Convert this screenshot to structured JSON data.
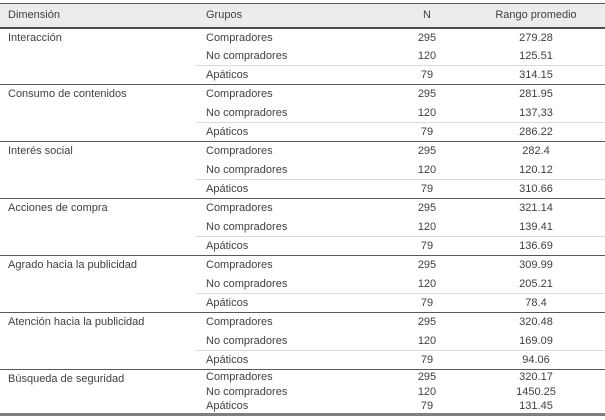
{
  "table": {
    "columns": [
      "Dimensión",
      "Grupos",
      "N",
      "Rango promedio"
    ],
    "groups": [
      {
        "dimension": "Interacción",
        "rows": [
          {
            "grupo": "Compradores",
            "n": "295",
            "rango": "279.28"
          },
          {
            "grupo": "No compradores",
            "n": "120",
            "rango": "125.51"
          },
          {
            "grupo": "Apáticos",
            "n": "79",
            "rango": "314.15"
          }
        ]
      },
      {
        "dimension": "Consumo de contenidos",
        "rows": [
          {
            "grupo": "Compradores",
            "n": "295",
            "rango": "281.95"
          },
          {
            "grupo": "No compradores",
            "n": "120",
            "rango": "137,33"
          },
          {
            "grupo": "Apáticos",
            "n": "79",
            "rango": "286.22"
          }
        ]
      },
      {
        "dimension": "Interés social",
        "rows": [
          {
            "grupo": "Compradores",
            "n": "295",
            "rango": "282.4"
          },
          {
            "grupo": "No compradores",
            "n": "120",
            "rango": "120.12"
          },
          {
            "grupo": "Apáticos",
            "n": "79",
            "rango": "310.66"
          }
        ]
      },
      {
        "dimension": "Acciones de compra",
        "rows": [
          {
            "grupo": "Compradores",
            "n": "295",
            "rango": "321.14"
          },
          {
            "grupo": "No compradores",
            "n": "120",
            "rango": "139.41"
          },
          {
            "grupo": "Apáticos",
            "n": "79",
            "rango": "136.69"
          }
        ]
      },
      {
        "dimension": "Agrado hacia la publicidad",
        "rows": [
          {
            "grupo": "Compradores",
            "n": "295",
            "rango": "309.99"
          },
          {
            "grupo": "No compradores",
            "n": "120",
            "rango": "205.21"
          },
          {
            "grupo": "Apáticos",
            "n": "79",
            "rango": "78.4"
          }
        ]
      },
      {
        "dimension": "Atención hacia la publicidad",
        "rows": [
          {
            "grupo": "Compradores",
            "n": "295",
            "rango": "320.48"
          },
          {
            "grupo": "No compradores",
            "n": "120",
            "rango": "169.09"
          },
          {
            "grupo": "Apáticos",
            "n": "79",
            "rango": "94.06"
          }
        ]
      },
      {
        "dimension": "Búsqueda de seguridad",
        "compact": true,
        "rows": [
          {
            "grupo": "Compradores",
            "n": "295",
            "rango": "320.17"
          },
          {
            "grupo": "No compradores",
            "n": "120",
            "rango": "1450.25"
          },
          {
            "grupo": "Apáticos",
            "n": "79",
            "rango": "131.45"
          }
        ]
      }
    ],
    "colors": {
      "header_bg": "#ececec",
      "text": "#404040",
      "dark_border": "#595959",
      "light_border": "#d9d9d9",
      "bottom_border": "#7f7f7f"
    }
  }
}
